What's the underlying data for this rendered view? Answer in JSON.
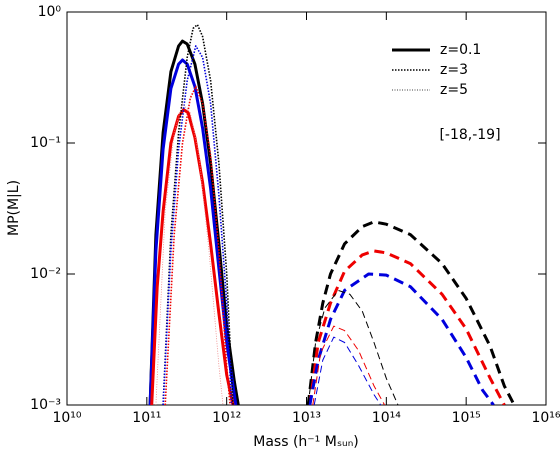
{
  "chart_data": {
    "type": "line",
    "x_label": "Mass (h⁻¹ Mₛᵤₙ)",
    "y_label": "MP(M|L)",
    "annotation": "[-18,-19]",
    "xscale": "log",
    "yscale": "log",
    "xlim": [
      10000000000.0,
      1e+16
    ],
    "ylim": [
      0.001,
      1
    ],
    "xticks": [
      {
        "value": 10000000000.0,
        "label": "10¹⁰"
      },
      {
        "value": 100000000000.0,
        "label": "10¹¹"
      },
      {
        "value": 1000000000000.0,
        "label": "10¹²"
      },
      {
        "value": 10000000000000.0,
        "label": "10¹³"
      },
      {
        "value": 100000000000000.0,
        "label": "10¹⁴"
      },
      {
        "value": 1000000000000000.0,
        "label": "10¹⁵"
      },
      {
        "value": 1e+16,
        "label": "10¹⁶"
      }
    ],
    "yticks": [
      {
        "value": 0.001,
        "label": "10⁻³"
      },
      {
        "value": 0.01,
        "label": "10⁻²"
      },
      {
        "value": 0.1,
        "label": "10⁻¹"
      },
      {
        "value": 1,
        "label": "10⁰"
      }
    ],
    "legend": [
      {
        "label": "z=0.1",
        "style": "solid-thick"
      },
      {
        "label": "z=3",
        "style": "dotted"
      },
      {
        "label": "z=5",
        "style": "thin-dotted"
      }
    ],
    "series": [
      {
        "color": "#000000",
        "style": "solid-thick",
        "x": [
          110000000000.0,
          130000000000.0,
          160000000000.0,
          200000000000.0,
          250000000000.0,
          280000000000.0,
          320000000000.0,
          400000000000.0,
          500000000000.0,
          630000000000.0,
          800000000000.0,
          1000000000000.0,
          1250000000000.0,
          1400000000000.0
        ],
        "values": [
          0.001,
          0.02,
          0.12,
          0.35,
          0.55,
          0.6,
          0.57,
          0.4,
          0.2,
          0.07,
          0.017,
          0.004,
          0.0015,
          0.001
        ]
      },
      {
        "color": "#0000dd",
        "style": "solid-thick",
        "x": [
          110000000000.0,
          130000000000.0,
          160000000000.0,
          200000000000.0,
          250000000000.0,
          280000000000.0,
          320000000000.0,
          400000000000.0,
          500000000000.0,
          630000000000.0,
          800000000000.0,
          1000000000000.0,
          1300000000000.0
        ],
        "values": [
          0.001,
          0.015,
          0.09,
          0.26,
          0.4,
          0.43,
          0.4,
          0.27,
          0.13,
          0.045,
          0.011,
          0.003,
          0.001
        ]
      },
      {
        "color": "#ee0000",
        "style": "solid-thick",
        "x": [
          115000000000.0,
          135000000000.0,
          160000000000.0,
          200000000000.0,
          250000000000.0,
          290000000000.0,
          330000000000.0,
          400000000000.0,
          500000000000.0,
          630000000000.0,
          800000000000.0,
          1000000000000.0,
          1200000000000.0
        ],
        "values": [
          0.001,
          0.008,
          0.03,
          0.1,
          0.16,
          0.18,
          0.17,
          0.11,
          0.05,
          0.017,
          0.005,
          0.0017,
          0.001
        ]
      },
      {
        "color": "#000000",
        "style": "dotted",
        "x": [
          160000000000.0,
          200000000000.0,
          250000000000.0,
          320000000000.0,
          380000000000.0,
          430000000000.0,
          500000000000.0,
          630000000000.0,
          800000000000.0,
          1000000000000.0,
          1200000000000.0
        ],
        "values": [
          0.001,
          0.02,
          0.12,
          0.45,
          0.75,
          0.8,
          0.65,
          0.3,
          0.07,
          0.01,
          0.001
        ]
      },
      {
        "color": "#0000dd",
        "style": "dotted",
        "x": [
          160000000000.0,
          200000000000.0,
          250000000000.0,
          320000000000.0,
          410000000000.0,
          500000000000.0,
          630000000000.0,
          800000000000.0,
          1000000000000.0,
          1150000000000.0
        ],
        "values": [
          0.001,
          0.015,
          0.09,
          0.3,
          0.55,
          0.45,
          0.2,
          0.04,
          0.006,
          0.001
        ]
      },
      {
        "color": "#ee0000",
        "style": "dotted",
        "x": [
          170000000000.0,
          220000000000.0,
          280000000000.0,
          350000000000.0,
          410000000000.0,
          500000000000.0,
          630000000000.0,
          800000000000.0,
          1000000000000.0,
          1100000000000.0
        ],
        "values": [
          0.001,
          0.02,
          0.1,
          0.22,
          0.27,
          0.2,
          0.08,
          0.015,
          0.002,
          0.001
        ]
      },
      {
        "color": "#ee8888",
        "style": "thin-dotted",
        "x": [
          130000000000.0,
          170000000000.0,
          220000000000.0,
          280000000000.0,
          350000000000.0,
          450000000000.0,
          600000000000.0,
          800000000000.0,
          900000000000.0
        ],
        "values": [
          0.001,
          0.03,
          0.12,
          0.2,
          0.17,
          0.08,
          0.015,
          0.002,
          0.001
        ]
      },
      {
        "color": "#000000",
        "style": "dashed-thick",
        "x": [
          10500000000000.0,
          13000000000000.0,
          16000000000000.0,
          20000000000000.0,
          30000000000000.0,
          50000000000000.0,
          70000000000000.0,
          100000000000000.0,
          200000000000000.0,
          500000000000000.0,
          1000000000000000.0,
          2000000000000000.0,
          3000000000000000.0,
          4000000000000000.0
        ],
        "values": [
          0.001,
          0.003,
          0.006,
          0.01,
          0.017,
          0.023,
          0.025,
          0.024,
          0.02,
          0.012,
          0.0065,
          0.0028,
          0.0014,
          0.001
        ]
      },
      {
        "color": "#ee0000",
        "style": "dashed-thick",
        "x": [
          11000000000000.0,
          14000000000000.0,
          20000000000000.0,
          30000000000000.0,
          50000000000000.0,
          70000000000000.0,
          100000000000000.0,
          200000000000000.0,
          500000000000000.0,
          1000000000000000.0,
          2000000000000000.0,
          3000000000000000.0
        ],
        "values": [
          0.001,
          0.003,
          0.006,
          0.0105,
          0.014,
          0.015,
          0.0145,
          0.012,
          0.007,
          0.0038,
          0.0016,
          0.001
        ]
      },
      {
        "color": "#0000dd",
        "style": "dashed-thick",
        "x": [
          11000000000000.0,
          14000000000000.0,
          20000000000000.0,
          30000000000000.0,
          60000000000000.0,
          100000000000000.0,
          200000000000000.0,
          500000000000000.0,
          1000000000000000.0,
          1600000000000000.0,
          2200000000000000.0
        ],
        "values": [
          0.001,
          0.0022,
          0.0045,
          0.0075,
          0.01,
          0.0098,
          0.008,
          0.0045,
          0.0023,
          0.0013,
          0.001
        ]
      },
      {
        "color": "#000000",
        "style": "dashed-thin",
        "x": [
          10500000000000.0,
          13000000000000.0,
          17000000000000.0,
          25000000000000.0,
          35000000000000.0,
          50000000000000.0,
          70000000000000.0,
          100000000000000.0,
          140000000000000.0
        ],
        "values": [
          0.001,
          0.003,
          0.0055,
          0.0075,
          0.007,
          0.0052,
          0.003,
          0.0016,
          0.001
        ]
      },
      {
        "color": "#ee0000",
        "style": "dashed-thin",
        "x": [
          12000000000000.0,
          15000000000000.0,
          22000000000000.0,
          30000000000000.0,
          45000000000000.0,
          70000000000000.0,
          95000000000000.0
        ],
        "values": [
          0.001,
          0.0025,
          0.004,
          0.0037,
          0.0026,
          0.0014,
          0.001
        ]
      },
      {
        "color": "#0000dd",
        "style": "dashed-thin",
        "x": [
          12500000000000.0,
          16000000000000.0,
          22000000000000.0,
          30000000000000.0,
          45000000000000.0,
          70000000000000.0,
          85000000000000.0
        ],
        "values": [
          0.001,
          0.0022,
          0.0033,
          0.003,
          0.002,
          0.0012,
          0.001
        ]
      }
    ]
  }
}
